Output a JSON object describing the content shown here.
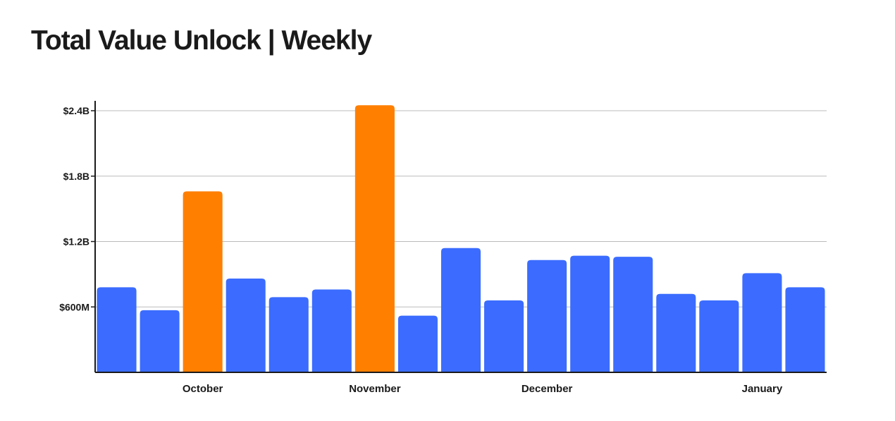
{
  "chart_data": {
    "type": "bar",
    "title": "Total Value Unlock | Weekly",
    "xlabel": "",
    "ylabel": "",
    "ylim": [
      0,
      2400
    ],
    "y_unit": "millions USD",
    "y_ticks": [
      {
        "value": 600,
        "label": "$600M"
      },
      {
        "value": 1200,
        "label": "$1.2B"
      },
      {
        "value": 1800,
        "label": "$1.8B"
      },
      {
        "value": 2400,
        "label": "$2.4B"
      }
    ],
    "month_labels": [
      {
        "label": "October",
        "week_index": 2.5
      },
      {
        "label": "November",
        "week_index": 6.5
      },
      {
        "label": "December",
        "week_index": 10.5
      },
      {
        "label": "January",
        "week_index": 15.5
      }
    ],
    "grid": true,
    "colors": {
      "normal": "#3b6cff",
      "highlight": "#ff7f00",
      "axis": "#1a1a1a",
      "grid": "#bbbbbb"
    },
    "values": [
      780,
      570,
      1660,
      860,
      690,
      760,
      2450,
      520,
      1140,
      660,
      1030,
      1070,
      1060,
      720,
      660,
      910,
      780
    ],
    "highlighted": [
      false,
      false,
      true,
      false,
      false,
      false,
      true,
      false,
      false,
      false,
      false,
      false,
      false,
      false,
      false,
      false,
      false
    ]
  }
}
